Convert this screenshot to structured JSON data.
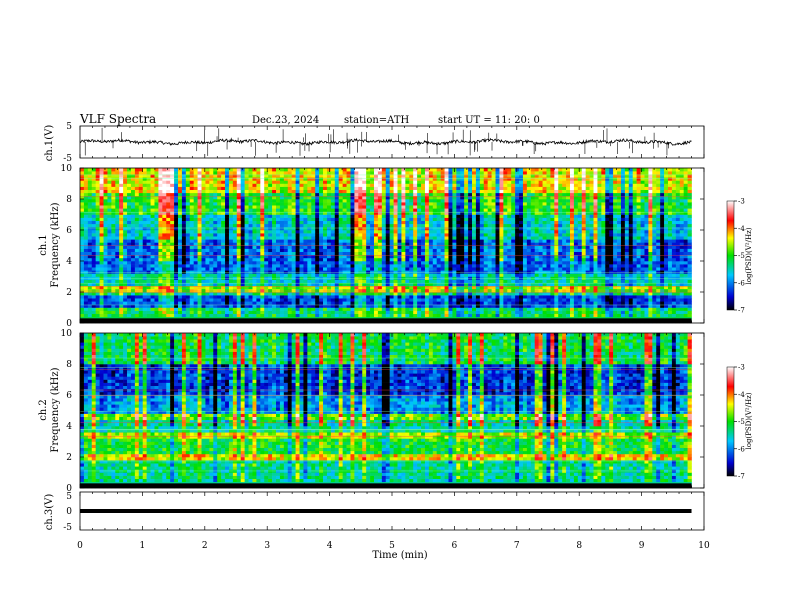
{
  "header": {
    "title": "VLF  Spectra",
    "date": "Dec.23, 2024",
    "station": "station=ATH",
    "start": "start  UT  =    11: 20: 0"
  },
  "chart_data": [
    {
      "type": "line",
      "name": "ch1-waveform",
      "ylabel": "ch.1(V)",
      "ylim": [
        -5,
        5
      ],
      "yticks": [
        "5",
        "-5"
      ],
      "xlim": [
        0,
        10
      ],
      "baseline_value": 0,
      "description_visible": "noisy waveform around 0 V with frequent spikes"
    },
    {
      "type": "heatmap",
      "name": "ch1-spectrogram",
      "ylabel": "Frequency  (kHz)",
      "channel_label": "ch.1",
      "ylim": [
        0,
        10
      ],
      "yticks": [
        "0",
        "2",
        "4",
        "6",
        "8",
        "10"
      ],
      "xlim": [
        0,
        10
      ],
      "data_end_min": 9.8,
      "colorbar": {
        "label": "log(PSD)(V²/Hz)",
        "range": [
          -7,
          -3
        ],
        "ticks": [
          "-3",
          "-4",
          "-5",
          "-6",
          "-7"
        ],
        "colors": [
          "#000000",
          "#0000d0",
          "#00c8ff",
          "#00e000",
          "#ffff00",
          "#ff0000",
          "#ffffff"
        ]
      },
      "bands_khz": [
        {
          "f0": 0.0,
          "f1": 0.3,
          "level": -7.0
        },
        {
          "f0": 0.3,
          "f1": 1.0,
          "level": -5.2
        },
        {
          "f0": 1.0,
          "f1": 1.8,
          "level": -6.2
        },
        {
          "f0": 1.8,
          "f1": 2.1,
          "level": -5.3
        },
        {
          "f0": 2.1,
          "f1": 2.4,
          "level": -4.6
        },
        {
          "f0": 2.4,
          "f1": 3.2,
          "level": -5.5
        },
        {
          "f0": 3.2,
          "f1": 5.5,
          "level": -6.1
        },
        {
          "f0": 5.5,
          "f1": 7.0,
          "level": -5.6
        },
        {
          "f0": 7.0,
          "f1": 8.5,
          "level": -5.0
        },
        {
          "f0": 8.5,
          "f1": 10.0,
          "level": -4.4
        }
      ]
    },
    {
      "type": "heatmap",
      "name": "ch2-spectrogram",
      "ylabel": "Frequency  (kHz)",
      "channel_label": "ch.2",
      "ylim": [
        0,
        10
      ],
      "yticks": [
        "0",
        "2",
        "4",
        "6",
        "8",
        "10"
      ],
      "xlim": [
        0,
        10
      ],
      "data_end_min": 9.8,
      "colorbar": {
        "label": "log(PSD)(V²/Hz)",
        "range": [
          -7,
          -3
        ],
        "ticks": [
          "-3",
          "-4",
          "-5",
          "-6",
          "-7"
        ],
        "colors": [
          "#000000",
          "#0000d0",
          "#00c8ff",
          "#00e000",
          "#ffff00",
          "#ff0000",
          "#ffffff"
        ]
      },
      "bands_khz": [
        {
          "f0": 0.0,
          "f1": 0.3,
          "level": -7.0
        },
        {
          "f0": 0.3,
          "f1": 1.8,
          "level": -5.4
        },
        {
          "f0": 1.8,
          "f1": 2.2,
          "level": -4.4
        },
        {
          "f0": 2.2,
          "f1": 3.3,
          "level": -5.1
        },
        {
          "f0": 3.3,
          "f1": 3.7,
          "level": -4.6
        },
        {
          "f0": 3.7,
          "f1": 4.4,
          "level": -5.4
        },
        {
          "f0": 4.4,
          "f1": 4.7,
          "level": -4.8
        },
        {
          "f0": 4.7,
          "f1": 6.0,
          "level": -5.9
        },
        {
          "f0": 6.0,
          "f1": 8.0,
          "level": -6.3
        },
        {
          "f0": 8.0,
          "f1": 10.0,
          "level": -5.2
        }
      ]
    },
    {
      "type": "line",
      "name": "ch3-waveform",
      "ylabel": "ch.3(V)",
      "ylim": [
        -5,
        5
      ],
      "yticks": [
        "5",
        "0",
        "-5"
      ],
      "xlim": [
        0,
        10
      ],
      "baseline_value": 0,
      "description_visible": "flat thick line near 0 V"
    }
  ],
  "xaxis": {
    "label": "Time  (min)",
    "ticks": [
      "0",
      "1",
      "2",
      "3",
      "4",
      "5",
      "6",
      "7",
      "8",
      "9",
      "10"
    ]
  }
}
